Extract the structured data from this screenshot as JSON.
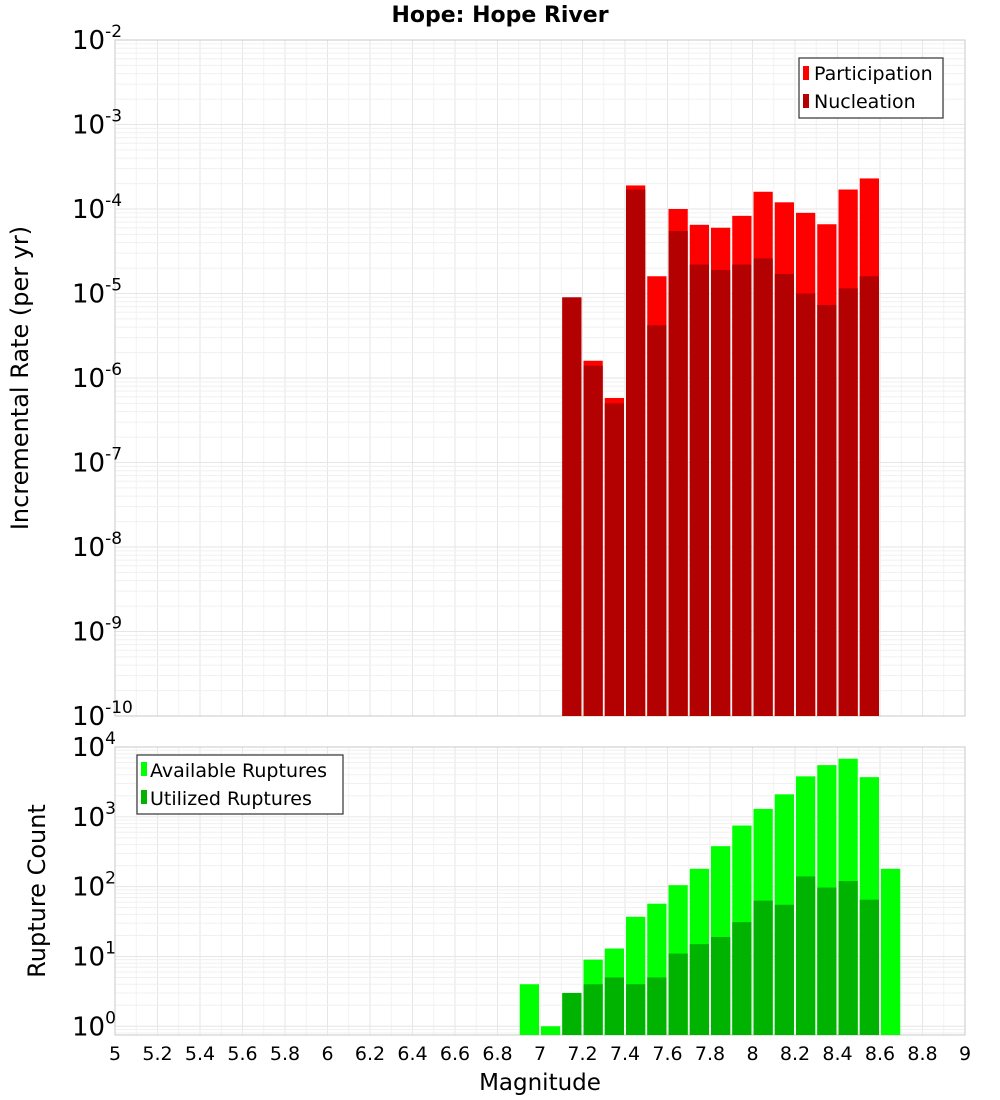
{
  "chart_data": [
    {
      "type": "bar",
      "title": "Hope: Hope River",
      "ylabel": "Incremental Rate (per yr)",
      "yscale": "log",
      "ylim": [
        1e-10,
        0.01
      ],
      "xlim": [
        5,
        9
      ],
      "legend": "top-right",
      "bar_width": 0.1,
      "ytick_labels": [
        "10^-2",
        "10^-3",
        "10^-4",
        "10^-5",
        "10^-6",
        "10^-7",
        "10^-8",
        "10^-9",
        "10^-10"
      ],
      "series": [
        {
          "name": "Participation",
          "color": "#ff0000",
          "x": [
            7.15,
            7.25,
            7.35,
            7.45,
            7.55,
            7.65,
            7.75,
            7.85,
            7.95,
            8.05,
            8.15,
            8.25,
            8.35,
            8.45,
            8.55
          ],
          "values": [
            9e-06,
            1.6e-06,
            5.8e-07,
            0.00019,
            1.6e-05,
            0.0001,
            6.5e-05,
            6e-05,
            8.3e-05,
            0.00016,
            0.00012,
            9e-05,
            6.6e-05,
            0.00017,
            0.00023
          ]
        },
        {
          "name": "Nucleation",
          "color": "#b30000",
          "x": [
            7.15,
            7.25,
            7.35,
            7.45,
            7.55,
            7.65,
            7.75,
            7.85,
            7.95,
            8.05,
            8.15,
            8.25,
            8.35,
            8.45,
            8.55
          ],
          "values": [
            9e-06,
            1.4e-06,
            5e-07,
            0.00017,
            4.2e-06,
            5.5e-05,
            2.2e-05,
            1.9e-05,
            2.2e-05,
            2.6e-05,
            1.7e-05,
            1e-05,
            7.3e-06,
            1.15e-05,
            1.6e-05
          ]
        }
      ]
    },
    {
      "type": "bar",
      "xlabel": "Magnitude",
      "ylabel": "Rupture Count",
      "yscale": "log",
      "ylim": [
        0.75,
        10000
      ],
      "xlim": [
        5,
        9
      ],
      "legend": "top-left",
      "bar_width": 0.1,
      "ytick_labels": [
        "10^4",
        "10^3",
        "10^2",
        "10^1",
        "10^0"
      ],
      "xtick_labels": [
        "5",
        "5.2",
        "5.4",
        "5.6",
        "5.8",
        "6",
        "6.2",
        "6.4",
        "6.6",
        "6.8",
        "7",
        "7.2",
        "7.4",
        "7.6",
        "7.8",
        "8",
        "8.2",
        "8.4",
        "8.6",
        "8.8",
        "9"
      ],
      "series": [
        {
          "name": "Available Ruptures",
          "color": "#00ff00",
          "x": [
            6.95,
            7.05,
            7.15,
            7.25,
            7.35,
            7.45,
            7.55,
            7.65,
            7.75,
            7.85,
            7.95,
            8.05,
            8.15,
            8.25,
            8.35,
            8.45,
            8.55,
            8.65
          ],
          "values": [
            4,
            1,
            3,
            9,
            13,
            37,
            57,
            105,
            180,
            380,
            750,
            1300,
            2100,
            3800,
            5500,
            6800,
            3700,
            180
          ]
        },
        {
          "name": "Utilized Ruptures",
          "color": "#00b300",
          "x": [
            7.15,
            7.25,
            7.35,
            7.45,
            7.55,
            7.65,
            7.75,
            7.85,
            7.95,
            8.05,
            8.15,
            8.25,
            8.35,
            8.45,
            8.55
          ],
          "values": [
            3,
            4,
            5,
            4,
            5,
            11,
            15,
            19,
            31,
            63,
            55,
            140,
            97,
            120,
            65
          ]
        }
      ]
    }
  ]
}
